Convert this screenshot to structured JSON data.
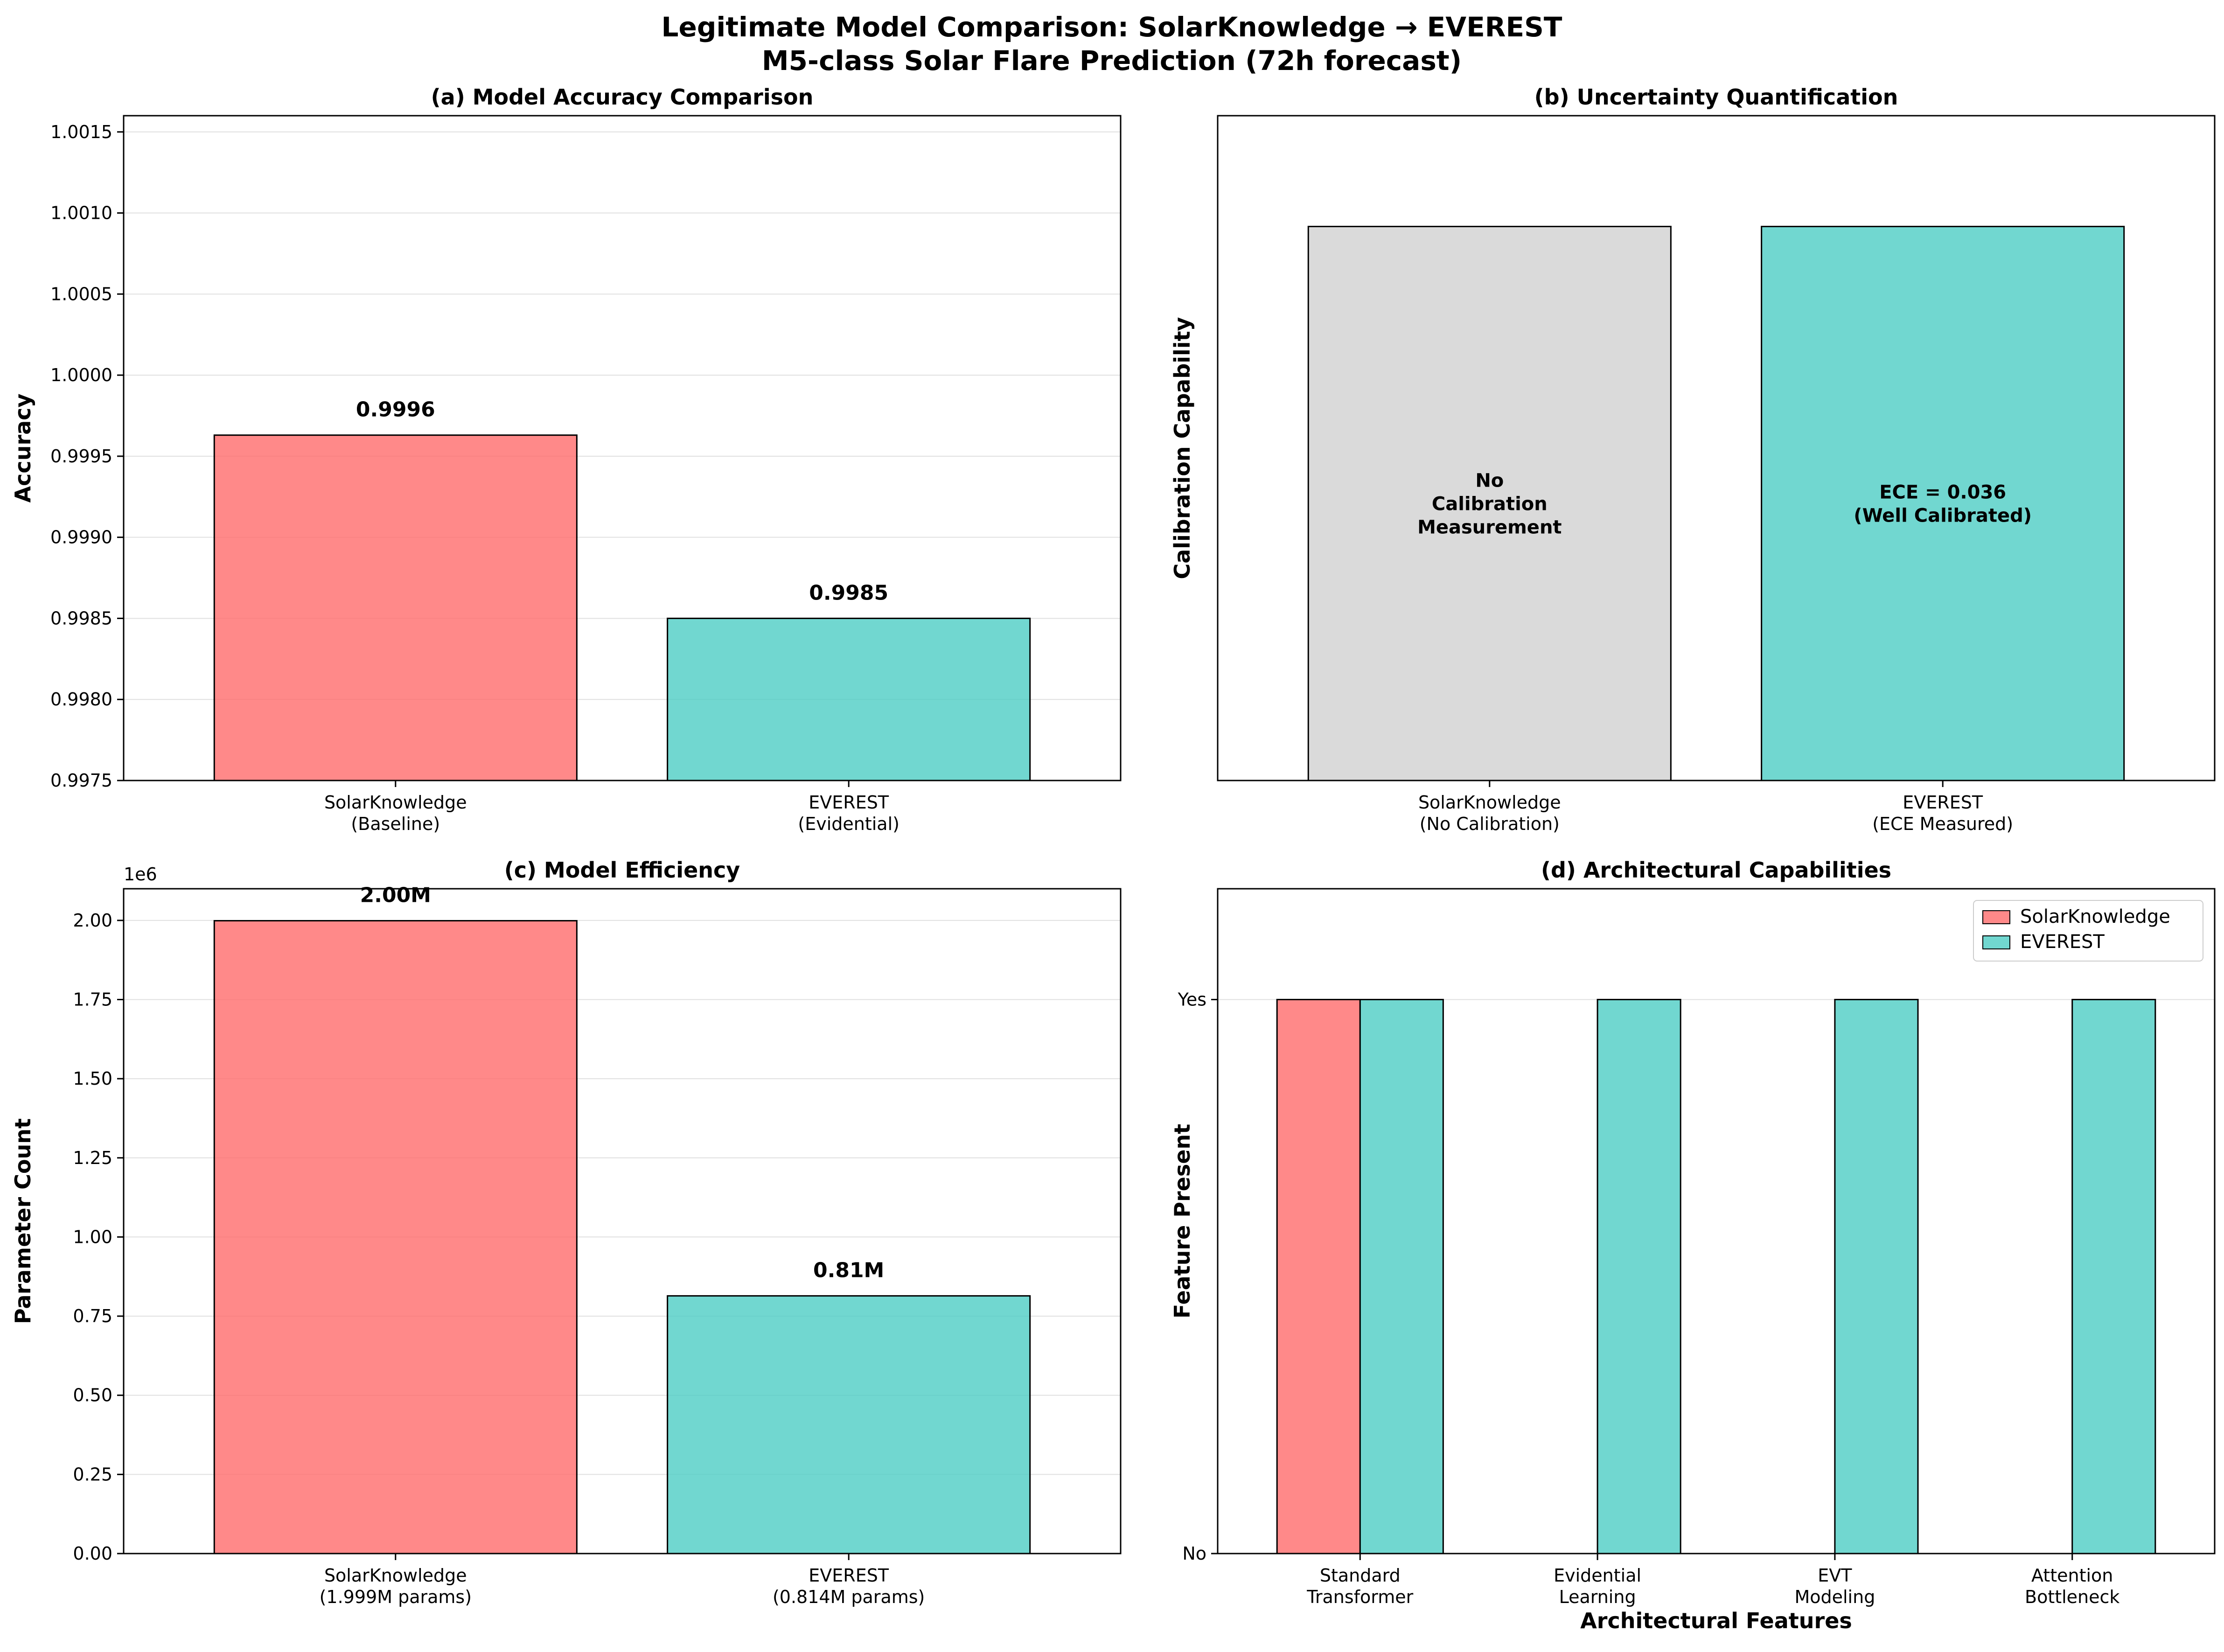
{
  "figure": {
    "title_line1": "Legitimate Model Comparison: SolarKnowledge → EVEREST",
    "title_line2": "M5-class Solar Flare Prediction (72h forecast)"
  },
  "colors": {
    "solarknowledge": "#ff6b6b",
    "everest": "#4ecdc4",
    "neutral": "#d3d3d3",
    "edge": "#000000",
    "grid": "#e0e0e0"
  },
  "chart_data": [
    {
      "id": "a",
      "type": "bar",
      "title": "(a) Model Accuracy Comparison",
      "xlabel": "",
      "ylabel": "Accuracy",
      "categories": [
        "SolarKnowledge\n(Baseline)",
        "EVEREST\n(Evidential)"
      ],
      "values": [
        0.99963,
        0.9985
      ],
      "data_labels": [
        "0.9996",
        "0.9985"
      ],
      "ylim": [
        0.9975,
        1.0016
      ],
      "yticks": [
        0.9975,
        0.998,
        0.9985,
        0.999,
        0.9995,
        1.0,
        1.0005,
        1.001,
        1.0015
      ],
      "ytick_labels": [
        "0.9975",
        "0.9980",
        "0.9985",
        "0.9990",
        "0.9995",
        "1.0000",
        "1.0005",
        "1.0010",
        "1.0015"
      ],
      "grid": "y"
    },
    {
      "id": "b",
      "type": "bar",
      "title": "(b) Uncertainty Quantification",
      "xlabel": "",
      "ylabel": "Calibration Capability",
      "categories": [
        "SolarKnowledge\n(No Calibration)",
        "EVEREST\n(ECE Measured)"
      ],
      "values": [
        1.0,
        1.0
      ],
      "inner_labels": [
        "No\nCalibration\nMeasurement",
        "ECE = 0.036\n(Well Calibrated)"
      ],
      "ylim": [
        0,
        1.2
      ],
      "grid": "none"
    },
    {
      "id": "c",
      "type": "bar",
      "title": "(c) Model Efficiency",
      "xlabel": "",
      "ylabel": "Parameter Count",
      "categories": [
        "SolarKnowledge\n(1.999M params)",
        "EVEREST\n(0.814M params)"
      ],
      "values": [
        1999000,
        814000
      ],
      "data_labels": [
        "2.00M",
        "0.81M"
      ],
      "ylim": [
        0,
        2100000
      ],
      "yticks": [
        0,
        250000,
        500000,
        750000,
        1000000,
        1250000,
        1500000,
        1750000,
        2000000
      ],
      "ytick_labels": [
        "0.00",
        "0.25",
        "0.50",
        "0.75",
        "1.00",
        "1.25",
        "1.50",
        "1.75",
        "2.00"
      ],
      "offset_label": "1e6",
      "grid": "y"
    },
    {
      "id": "d",
      "type": "bar",
      "title": "(d) Architectural Capabilities",
      "xlabel": "Architectural Features",
      "ylabel": "Feature Present",
      "categories": [
        "Standard\nTransformer",
        "Evidential\nLearning",
        "EVT\nModeling",
        "Attention\nBottleneck"
      ],
      "series": [
        {
          "name": "SolarKnowledge",
          "values": [
            1,
            0,
            0,
            0
          ]
        },
        {
          "name": "EVEREST",
          "values": [
            1,
            1,
            1,
            1
          ]
        }
      ],
      "ylim": [
        0,
        1.2
      ],
      "yticks": [
        0,
        1
      ],
      "ytick_labels": [
        "No",
        "Yes"
      ],
      "legend": "top-right",
      "grid": "y"
    }
  ]
}
